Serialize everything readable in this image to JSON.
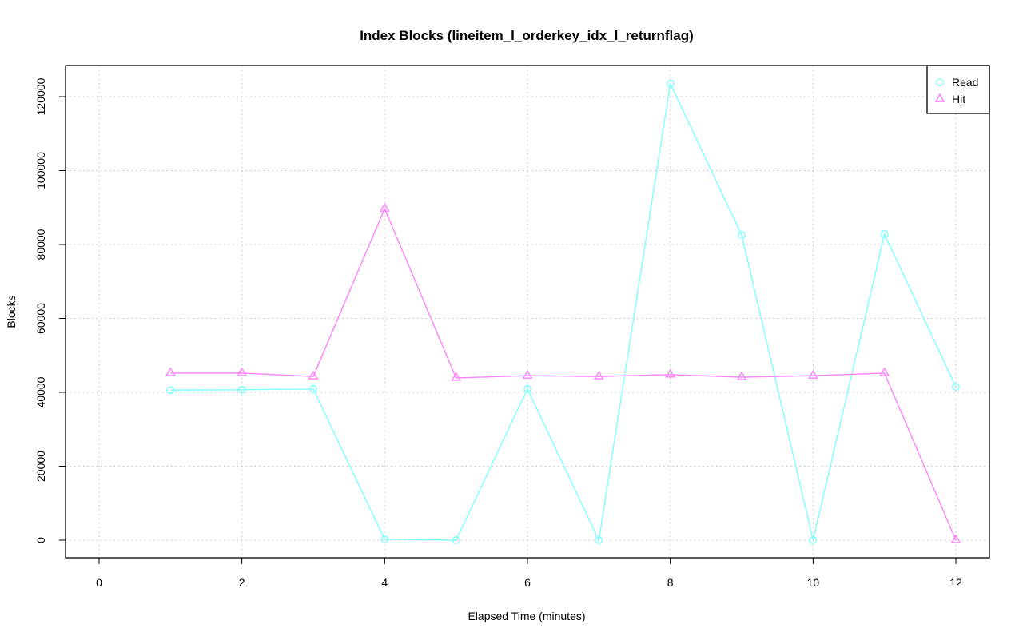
{
  "chart_data": {
    "type": "line",
    "title": "Index Blocks (lineitem_l_orderkey_idx_l_returnflag)",
    "xlabel": "Elapsed Time (minutes)",
    "ylabel": "Blocks",
    "xlim": [
      0,
      12
    ],
    "ylim": [
      0,
      120000
    ],
    "xticks": [
      0,
      2,
      4,
      6,
      8,
      10,
      12
    ],
    "yticks": [
      0,
      20000,
      40000,
      60000,
      80000,
      100000,
      120000
    ],
    "grid": true,
    "legend_position": "top-right",
    "x": [
      1,
      2,
      3,
      4,
      5,
      6,
      7,
      8,
      9,
      10,
      11,
      12
    ],
    "series": [
      {
        "name": "Read",
        "color": "#80ffff",
        "marker": "circle",
        "values": [
          40600,
          40700,
          40900,
          200,
          0,
          40900,
          0,
          123500,
          82600,
          0,
          82800,
          41500
        ]
      },
      {
        "name": "Hit",
        "color": "#ff80ff",
        "marker": "triangle",
        "values": [
          45200,
          45200,
          44300,
          89700,
          43900,
          44500,
          44300,
          44800,
          44100,
          44500,
          45200,
          0
        ]
      }
    ]
  }
}
